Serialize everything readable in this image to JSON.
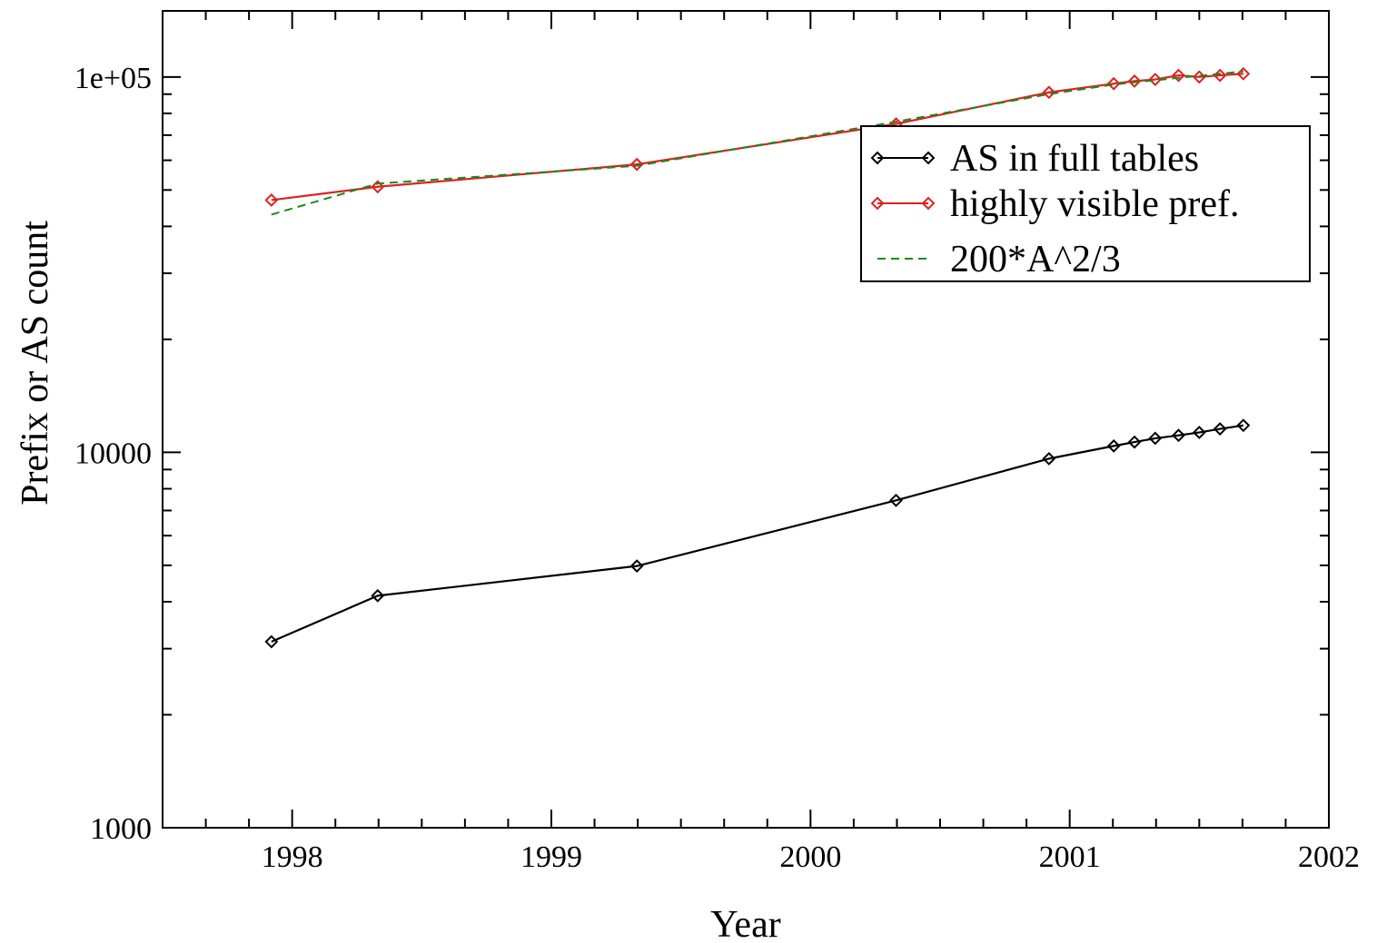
{
  "chart_data": {
    "type": "line",
    "title": "",
    "xlabel": "Year",
    "ylabel": "Prefix or AS count",
    "xlim": [
      1997.5,
      2002
    ],
    "ylim": [
      1000,
      150000
    ],
    "yscale": "log",
    "grid": false,
    "legend_position": "top-right",
    "x_ticks": [
      1998,
      1999,
      2000,
      2001,
      2002
    ],
    "x_tick_labels": [
      "1998",
      "1999",
      "2000",
      "2001",
      "2002"
    ],
    "y_ticks": [
      1000,
      10000,
      100000
    ],
    "y_tick_labels": [
      "1000",
      "10000",
      "1e+05"
    ],
    "series": [
      {
        "name": "AS in full tables",
        "color": "#000000",
        "style": "solid",
        "marker": "diamond",
        "x": [
          1997.92,
          1998.33,
          1999.33,
          2000.33,
          2000.92,
          2001.17,
          2001.25,
          2001.33,
          2001.42,
          2001.5,
          2001.58,
          2001.67
        ],
        "y": [
          3130,
          4150,
          4980,
          7450,
          9620,
          10400,
          10650,
          10900,
          11100,
          11300,
          11550,
          11800
        ]
      },
      {
        "name": "highly visible pref.",
        "color": "#e02020",
        "style": "solid",
        "marker": "diamond",
        "x": [
          1997.92,
          1998.33,
          1999.33,
          2000.33,
          2000.92,
          2001.17,
          2001.25,
          2001.33,
          2001.42,
          2001.5,
          2001.58,
          2001.67
        ],
        "y": [
          47000,
          51000,
          58500,
          75000,
          91000,
          96000,
          97500,
          98500,
          101000,
          100000,
          101000,
          102000
        ]
      },
      {
        "name": "200*A^2/3",
        "color": "#1a8a1a",
        "style": "dashed",
        "marker": "none",
        "x": [
          1997.92,
          1998.33,
          1999.33,
          2000.33,
          2000.92,
          2001.17,
          2001.25,
          2001.33,
          2001.42,
          2001.5,
          2001.58,
          2001.67
        ],
        "y": [
          43000,
          52000,
          58000,
          76000,
          90000,
          95500,
          96800,
          98000,
          99500,
          100700,
          102000,
          103500
        ]
      }
    ]
  }
}
